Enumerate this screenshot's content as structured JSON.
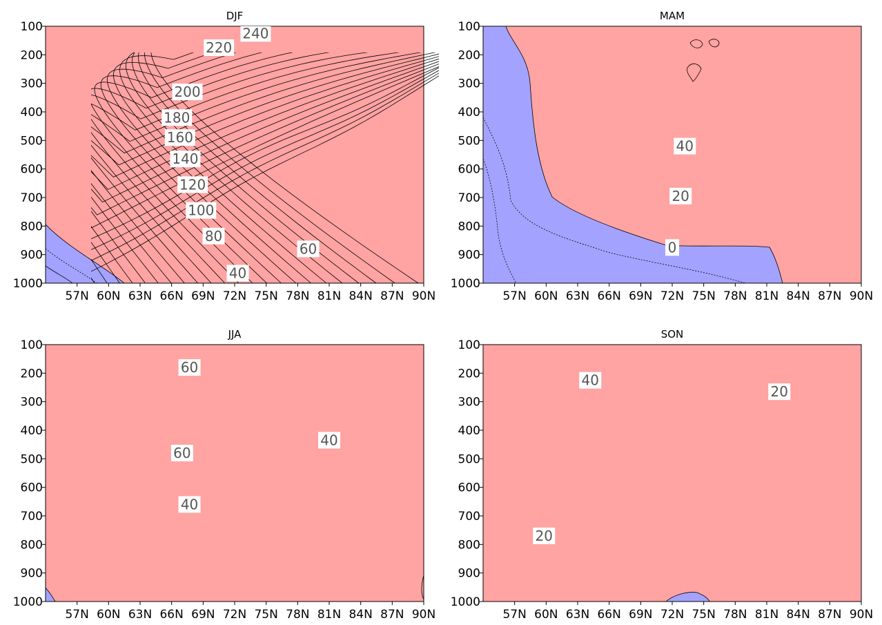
{
  "colors": {
    "positive": "#ffa3a3",
    "negative": "#a3a3ff",
    "line": "#000000",
    "label": "#555555"
  },
  "chart_data": [
    {
      "type": "contour",
      "title": "DJF",
      "xticks": [
        "57N",
        "60N",
        "63N",
        "66N",
        "69N",
        "72N",
        "75N",
        "78N",
        "81N",
        "84N",
        "87N",
        "90N"
      ],
      "yticks": [
        "100",
        "200",
        "300",
        "400",
        "500",
        "600",
        "700",
        "800",
        "900",
        "1000"
      ],
      "xlim": [
        54,
        90
      ],
      "ylim": [
        100,
        1000
      ],
      "y_inverted": true,
      "contour_labels": [
        {
          "text": "240",
          "lat": 74.0,
          "p": 125
        },
        {
          "text": "220",
          "lat": 70.5,
          "p": 175
        },
        {
          "text": "200",
          "lat": 67.5,
          "p": 330
        },
        {
          "text": "180",
          "lat": 66.5,
          "p": 420
        },
        {
          "text": "160",
          "lat": 66.8,
          "p": 490
        },
        {
          "text": "140",
          "lat": 67.3,
          "p": 565
        },
        {
          "text": "120",
          "lat": 68.0,
          "p": 655
        },
        {
          "text": "100",
          "lat": 68.8,
          "p": 745
        },
        {
          "text": "80",
          "lat": 70.0,
          "p": 835
        },
        {
          "text": "60",
          "lat": 79.0,
          "p": 880
        },
        {
          "text": "40",
          "lat": 72.3,
          "p": 965
        }
      ]
    },
    {
      "type": "contour",
      "title": "MAM",
      "xticks": [
        "57N",
        "60N",
        "63N",
        "66N",
        "69N",
        "72N",
        "75N",
        "78N",
        "81N",
        "84N",
        "87N",
        "90N"
      ],
      "yticks": [
        "100",
        "200",
        "300",
        "400",
        "500",
        "600",
        "700",
        "800",
        "900",
        "1000"
      ],
      "xlim": [
        54,
        90
      ],
      "ylim": [
        100,
        1000
      ],
      "y_inverted": true,
      "contour_labels": [
        {
          "text": "40",
          "lat": 73.2,
          "p": 520
        },
        {
          "text": "20",
          "lat": 72.8,
          "p": 695
        },
        {
          "text": "0",
          "lat": 72.0,
          "p": 875
        }
      ]
    },
    {
      "type": "contour",
      "title": "JJA",
      "xticks": [
        "57N",
        "60N",
        "63N",
        "66N",
        "69N",
        "72N",
        "75N",
        "78N",
        "81N",
        "84N",
        "87N",
        "90N"
      ],
      "yticks": [
        "100",
        "200",
        "300",
        "400",
        "500",
        "600",
        "700",
        "800",
        "900",
        "1000"
      ],
      "xlim": [
        54,
        90
      ],
      "ylim": [
        100,
        1000
      ],
      "y_inverted": true,
      "contour_labels": [
        {
          "text": "60",
          "lat": 67.7,
          "p": 180
        },
        {
          "text": "60",
          "lat": 67.0,
          "p": 480
        },
        {
          "text": "40",
          "lat": 81.0,
          "p": 435
        },
        {
          "text": "40",
          "lat": 67.7,
          "p": 660
        }
      ]
    },
    {
      "type": "contour",
      "title": "SON",
      "xticks": [
        "57N",
        "60N",
        "63N",
        "66N",
        "69N",
        "72N",
        "75N",
        "78N",
        "81N",
        "84N",
        "87N",
        "90N"
      ],
      "yticks": [
        "100",
        "200",
        "300",
        "400",
        "500",
        "600",
        "700",
        "800",
        "900",
        "1000"
      ],
      "xlim": [
        54,
        90
      ],
      "ylim": [
        100,
        1000
      ],
      "y_inverted": true,
      "contour_labels": [
        {
          "text": "40",
          "lat": 64.2,
          "p": 225
        },
        {
          "text": "20",
          "lat": 82.2,
          "p": 265
        },
        {
          "text": "20",
          "lat": 59.8,
          "p": 770
        }
      ]
    }
  ]
}
